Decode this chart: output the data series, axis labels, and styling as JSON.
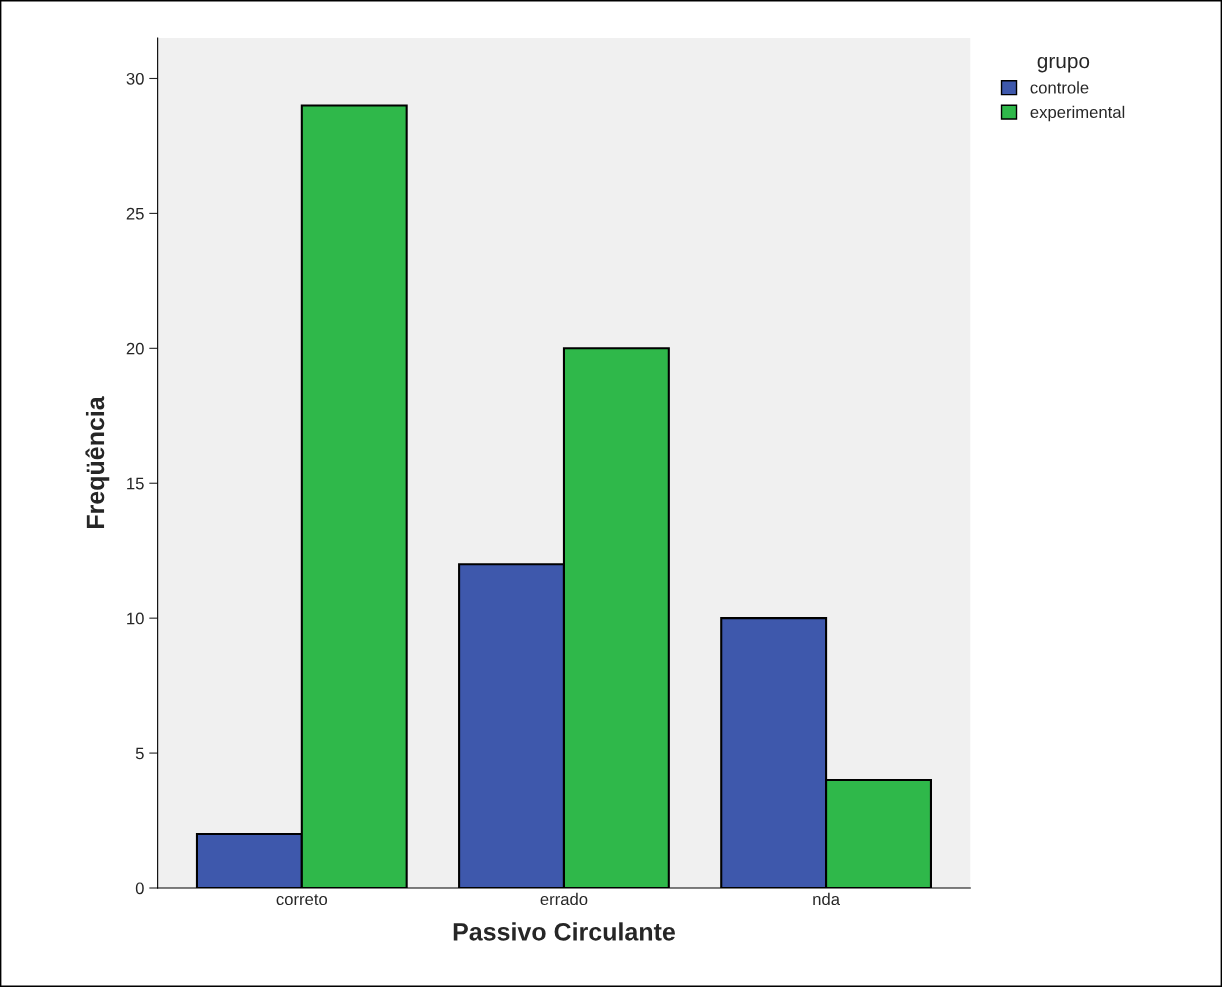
{
  "chart_data": {
    "type": "bar",
    "xlabel": "Passivo Circulante",
    "ylabel": "Freqüência",
    "legend_title": "grupo",
    "categories": [
      "correto",
      "errado",
      "nda"
    ],
    "series": [
      {
        "name": "controle",
        "color": "#3e58ac",
        "values": [
          2,
          12,
          10
        ]
      },
      {
        "name": "experimental",
        "color": "#2fb84a",
        "values": [
          29,
          20,
          4
        ]
      }
    ],
    "ylim": [
      0,
      31.5
    ],
    "yticks": [
      0,
      5,
      10,
      15,
      20,
      25,
      30
    ],
    "grid": false,
    "legend": "top right"
  }
}
